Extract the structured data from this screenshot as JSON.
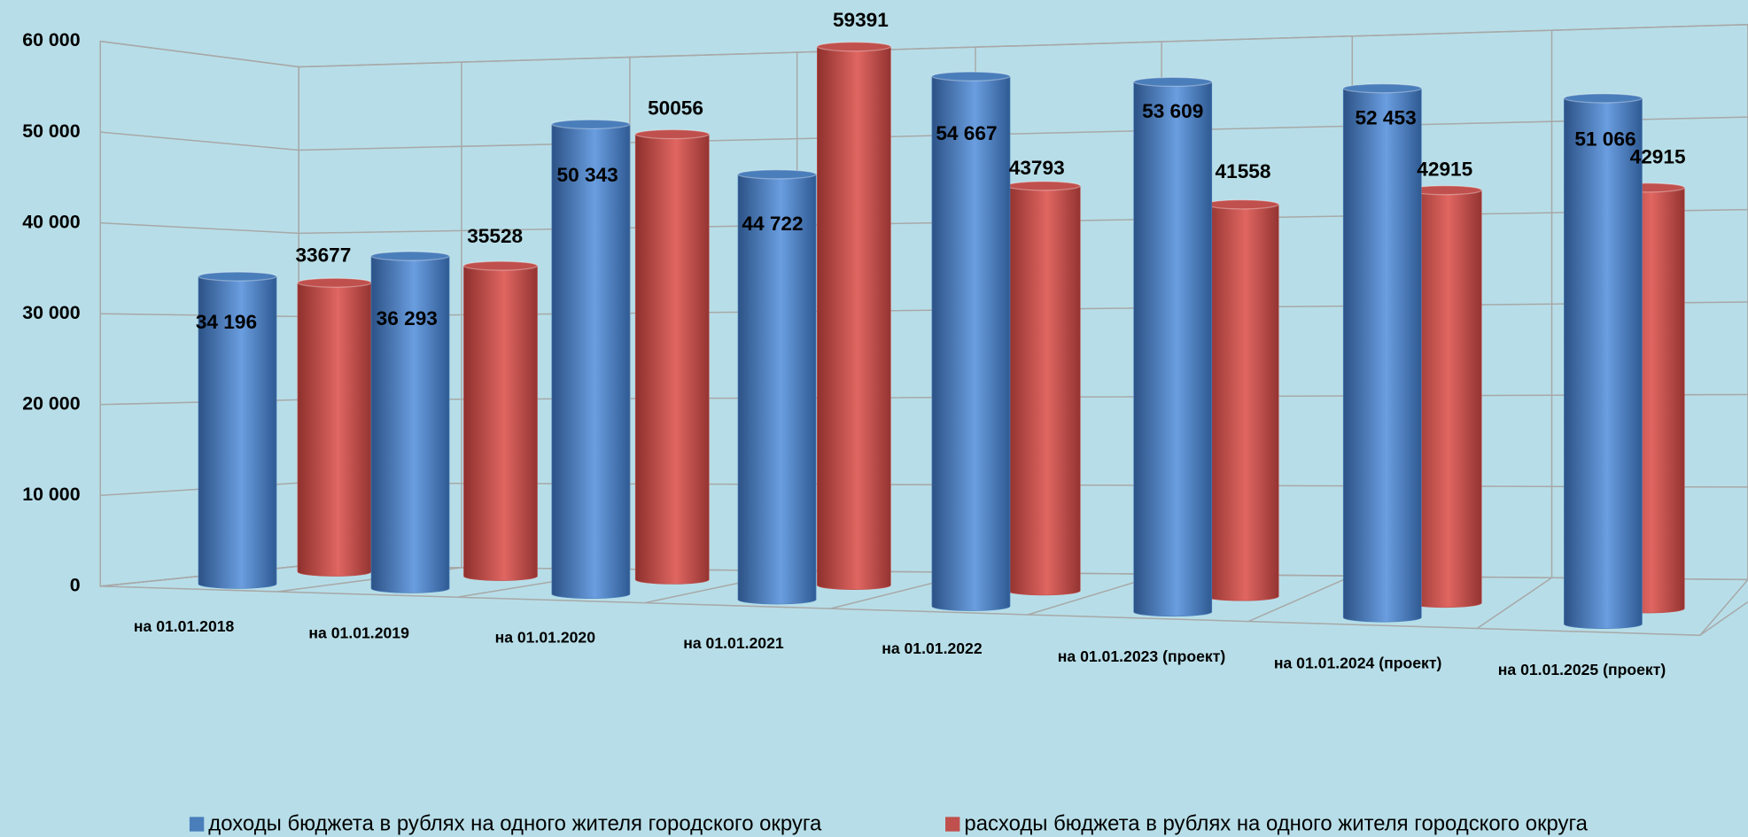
{
  "chart_data": {
    "type": "bar3d",
    "categories": [
      "на 01.01.2018",
      "на 01.01.2019",
      "на 01.01.2020",
      "на 01.01.2021",
      "на 01.01.2022",
      "на 01.01.2023 (проект)",
      "на 01.01.2024 (проект)",
      "на 01.01.2025 (проект)"
    ],
    "series": [
      {
        "name": "доходы бюджета в рублях на одного жителя городского округа",
        "color": "#4a7ebb",
        "values": [
          34196,
          36293,
          50343,
          44722,
          54667,
          53609,
          52453,
          51066
        ],
        "value_labels": [
          "34 196",
          "36 293",
          "50 343",
          "44 722",
          "54 667",
          "53 609",
          "52 453",
          "51 066"
        ]
      },
      {
        "name": "расходы бюджета в рублях на одного жителя городского округа",
        "color": "#c0504d",
        "values": [
          33677,
          35528,
          50056,
          59391,
          43793,
          41558,
          42915,
          42915
        ]
      }
    ],
    "ylim": [
      0,
      60000
    ],
    "yticks": [
      0,
      {
        "value": 10000,
        "label": "10 000"
      },
      {
        "value": 20000,
        "label": "20 000"
      },
      {
        "value": 30000,
        "label": "30 000"
      },
      {
        "value": 40000,
        "label": "40 000"
      },
      {
        "value": 50000,
        "label": "50 000"
      },
      {
        "value": 60000,
        "label": "60 000"
      }
    ],
    "grid": true,
    "legend": "bottom"
  }
}
